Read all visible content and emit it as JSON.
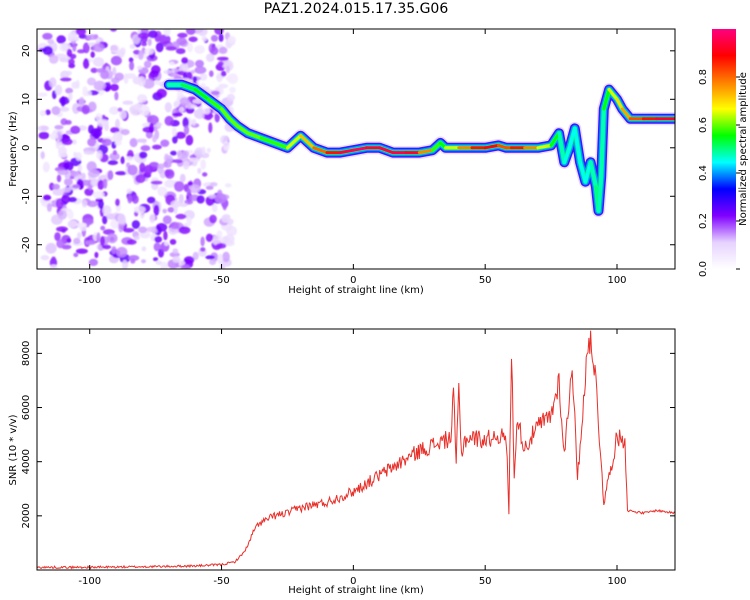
{
  "figure_title": "PAZ1.2024.015.17.35.G06",
  "chart_data": [
    {
      "type": "heatmap",
      "title": "",
      "xlabel": "Height of straight line (km)",
      "ylabel": "Frequency (Hz)",
      "xlim": [
        -120,
        122
      ],
      "ylim": [
        -25,
        24.5
      ],
      "xticks": [
        -100,
        -50,
        0,
        50,
        100
      ],
      "yticks": [
        -20,
        -10,
        0,
        10,
        20
      ],
      "colorbar": {
        "label": "Normalized spectral amplitude",
        "range": [
          0,
          1
        ],
        "ticks": [
          0.0,
          0.2,
          0.4,
          0.6,
          0.8
        ],
        "colormap": [
          "#ffffff",
          "#e6d2ff",
          "#8000ff",
          "#0000ff",
          "#00ffff",
          "#00ff00",
          "#ffff00",
          "#ff8000",
          "#ff0000",
          "#ff0080"
        ]
      },
      "noise_region": {
        "x_range": [
          -118,
          -44
        ],
        "y_range": [
          -25,
          24.5
        ],
        "max_amplitude": 0.25
      },
      "ridge": {
        "x": [
          -70,
          -65,
          -60,
          -55,
          -50,
          -47,
          -44,
          -40,
          -35,
          -30,
          -25,
          -20,
          -15,
          -10,
          -5,
          0,
          5,
          10,
          15,
          20,
          25,
          30,
          33,
          35,
          40,
          45,
          50,
          55,
          58,
          60,
          65,
          70,
          75,
          78,
          80,
          82,
          84,
          86,
          88,
          90,
          92,
          93,
          94,
          95,
          97,
          100,
          102,
          105,
          110,
          115,
          122
        ],
        "frequency": [
          13,
          13,
          12,
          10,
          8,
          6,
          4.5,
          3,
          2,
          1,
          0,
          2.5,
          0,
          -1,
          -1,
          -0.5,
          0,
          0,
          -1,
          -1,
          -1,
          -0.5,
          1,
          0,
          0,
          0,
          0,
          0.5,
          0,
          0,
          0,
          0,
          0.5,
          3,
          -3,
          0,
          4,
          -3,
          -7,
          -3,
          -8,
          -13,
          -6,
          8,
          12,
          10,
          8,
          6,
          6,
          6,
          6
        ],
        "amplitude": [
          0.45,
          0.5,
          0.55,
          0.55,
          0.6,
          0.6,
          0.6,
          0.6,
          0.6,
          0.55,
          0.6,
          0.7,
          0.75,
          0.85,
          0.9,
          1.0,
          0.95,
          0.95,
          0.95,
          0.95,
          0.9,
          0.65,
          0.5,
          0.6,
          0.7,
          0.85,
          0.9,
          0.9,
          0.75,
          0.9,
          0.85,
          0.7,
          0.6,
          0.5,
          0.45,
          0.45,
          0.45,
          0.45,
          0.45,
          0.45,
          0.5,
          0.5,
          0.45,
          0.5,
          0.6,
          0.7,
          0.7,
          0.8,
          0.85,
          0.9,
          0.95
        ]
      }
    },
    {
      "type": "line",
      "title": "",
      "xlabel": "Height of straight line (km)",
      "ylabel": "SNR (10 * v/v)",
      "xlim": [
        -120,
        122
      ],
      "ylim": [
        0,
        8900
      ],
      "xticks": [
        -100,
        -50,
        0,
        50,
        100
      ],
      "yticks": [
        2000,
        4000,
        6000,
        8000
      ],
      "series": [
        {
          "color": "#e8302a",
          "x": [
            -120,
            -100,
            -80,
            -60,
            -50,
            -45,
            -42,
            -40,
            -38,
            -36,
            -34,
            -30,
            -25,
            -20,
            -15,
            -10,
            -5,
            0,
            5,
            10,
            15,
            20,
            25,
            30,
            35,
            37,
            38,
            39,
            40,
            41,
            42,
            45,
            50,
            55,
            58,
            59,
            60,
            61,
            62,
            65,
            70,
            75,
            78,
            80,
            83,
            85,
            88,
            90,
            92,
            95,
            100,
            103,
            104,
            110,
            115,
            122
          ],
          "y": [
            100,
            100,
            120,
            150,
            200,
            300,
            600,
            900,
            1400,
            1700,
            1800,
            2000,
            2100,
            2300,
            2400,
            2500,
            2700,
            2900,
            3200,
            3500,
            3800,
            4100,
            4400,
            4600,
            4800,
            4900,
            6500,
            4000,
            6600,
            4200,
            4800,
            4900,
            4800,
            5000,
            4800,
            2200,
            8200,
            3300,
            5600,
            4500,
            5300,
            5700,
            7000,
            4200,
            7700,
            3300,
            7200,
            8800,
            6900,
            2500,
            4900,
            4800,
            2200,
            2100,
            2200,
            2100
          ]
        }
      ]
    }
  ]
}
